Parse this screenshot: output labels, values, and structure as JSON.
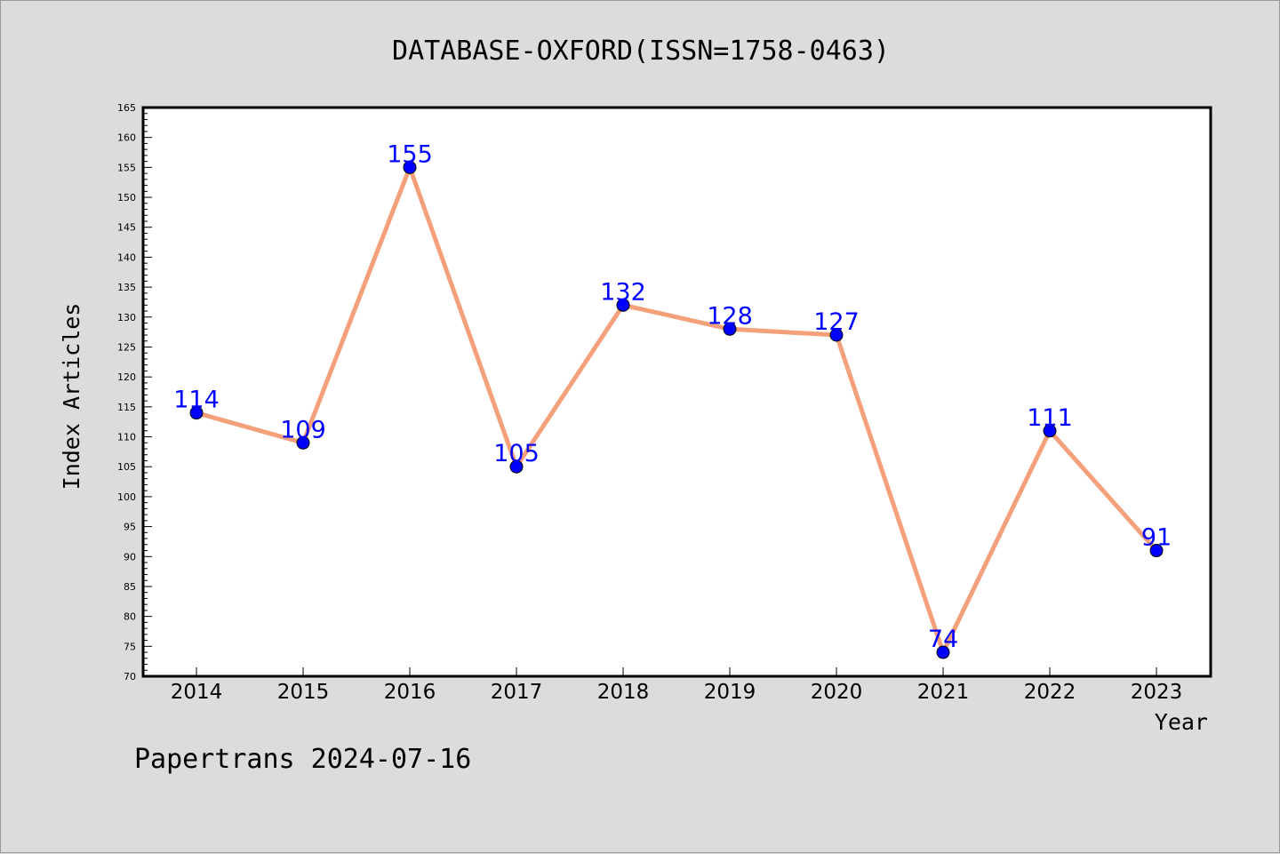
{
  "chart_data": {
    "type": "line",
    "title": "DATABASE-OXFORD(ISSN=1758-0463)",
    "xlabel": "Year",
    "ylabel": "Index Articles",
    "categories": [
      "2014",
      "2015",
      "2016",
      "2017",
      "2018",
      "2019",
      "2020",
      "2021",
      "2022",
      "2023"
    ],
    "series": [
      {
        "values": [
          114,
          109,
          155,
          105,
          132,
          128,
          127,
          74,
          111,
          91
        ]
      }
    ],
    "ylim": [
      70,
      165
    ],
    "ytick_step": 5,
    "grid": false,
    "colors": {
      "line": "#f4a07a",
      "marker": "#0000ff",
      "label": "#0000ff",
      "background": "#dcdcdc",
      "plot": "#ffffff"
    }
  },
  "footer": {
    "text": "Papertrans 2024-07-16"
  }
}
